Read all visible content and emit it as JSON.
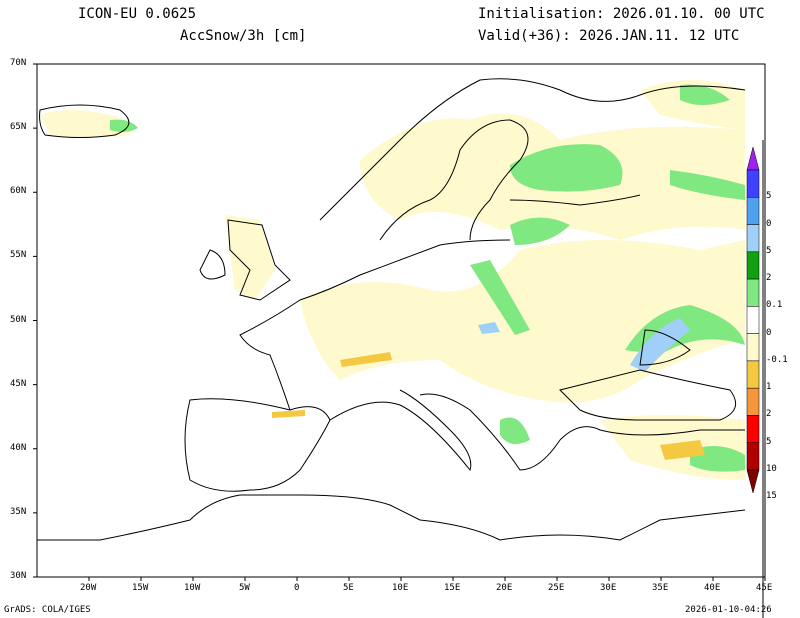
{
  "header": {
    "model": "ICON-EU 0.0625",
    "variable": "AccSnow/3h [cm]",
    "initialisation": "Initialisation: 2026.01.10. 00 UTC",
    "valid": "Valid(+36): 2026.JAN.11. 12 UTC"
  },
  "footer": {
    "credit": "GrADS: COLA/IGES",
    "timestamp": "2026-01-10-04:26"
  },
  "axes": {
    "lat_labels": [
      "70N",
      "65N",
      "60N",
      "55N",
      "50N",
      "45N",
      "40N",
      "35N",
      "30N"
    ],
    "lat_values": [
      70,
      65,
      60,
      55,
      50,
      45,
      40,
      35,
      30
    ],
    "lon_labels": [
      "20W",
      "15W",
      "10W",
      "5W",
      "0",
      "5E",
      "10E",
      "15E",
      "20E",
      "25E",
      "30E",
      "35E",
      "40E",
      "45E"
    ],
    "lon_values": [
      -20,
      -15,
      -10,
      -5,
      0,
      5,
      10,
      15,
      20,
      25,
      30,
      35,
      40,
      45
    ],
    "lon_range": [
      -25,
      45
    ],
    "lat_range": [
      30,
      70
    ]
  },
  "legend": {
    "labels": [
      "5",
      "0",
      "5",
      "2",
      "0.1",
      "0",
      "-0.1",
      "1",
      "2",
      "5",
      "10",
      "15"
    ],
    "colors": [
      "#a020f0",
      "#4040ff",
      "#50a0f0",
      "#a0d0f8",
      "#10a010",
      "#80e880",
      "#ffffff",
      "#fffacd",
      "#f5c842",
      "#f5963c",
      "#ff0000",
      "#b00000",
      "#800000"
    ]
  }
}
